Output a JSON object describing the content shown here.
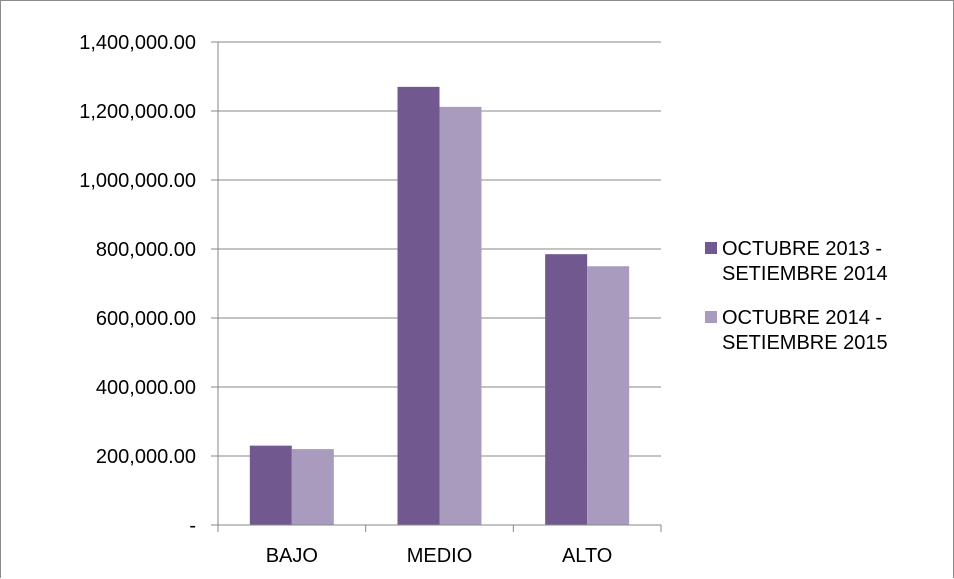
{
  "chart_data": {
    "type": "bar",
    "title": "",
    "xlabel": "",
    "ylabel": "",
    "categories": [
      "BAJO",
      "MEDIO",
      "ALTO"
    ],
    "series": [
      {
        "name": "OCTUBRE 2013 - SETIEMBRE 2014",
        "color": "#715990",
        "values": [
          230000,
          1270000,
          785000
        ]
      },
      {
        "name": "OCTUBRE 2014 - SETIEMBRE 2015",
        "color": "#a99bbd",
        "values": [
          220000,
          1212000,
          750000
        ]
      }
    ],
    "ylim": [
      0,
      1400000
    ],
    "yticks": [
      0,
      200000,
      400000,
      600000,
      800000,
      1000000,
      1200000,
      1400000
    ],
    "ytick_labels": [
      "-",
      "200,000.00",
      "400,000.00",
      "600,000.00",
      "800,000.00",
      "1,000,000.00",
      "1,200,000.00",
      "1,400,000.00"
    ],
    "grid": true,
    "legend_position": "right"
  }
}
